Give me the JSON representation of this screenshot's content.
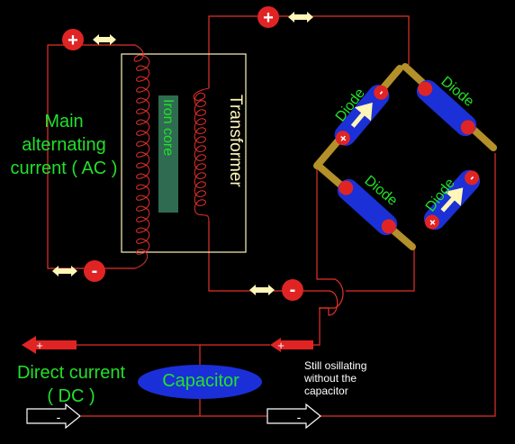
{
  "labels": {
    "main_ac_line1": "Main",
    "main_ac_line2": "alternating",
    "main_ac_line3": "current ( AC )",
    "iron_core": "Iron core",
    "transformer": "Transformer",
    "diode": "Diode",
    "capacitor": "Capacitor",
    "dc_line1": "Direct current",
    "dc_line2": "( DC )",
    "note_line1": "Still osillating",
    "note_line2": "without the",
    "note_line3": "capacitor"
  },
  "symbols": {
    "plus": "+",
    "minus": "-"
  },
  "colors": {
    "background": "#000000",
    "wire": "#e4312b",
    "label_green": "#22e02a",
    "diode_blue": "#1b30d6",
    "diode_bar": "#b4902a",
    "capacitor_blue": "#1b2fd8",
    "iron_core": "#2f6b50",
    "arrow_yellow": "#fff6b8"
  }
}
